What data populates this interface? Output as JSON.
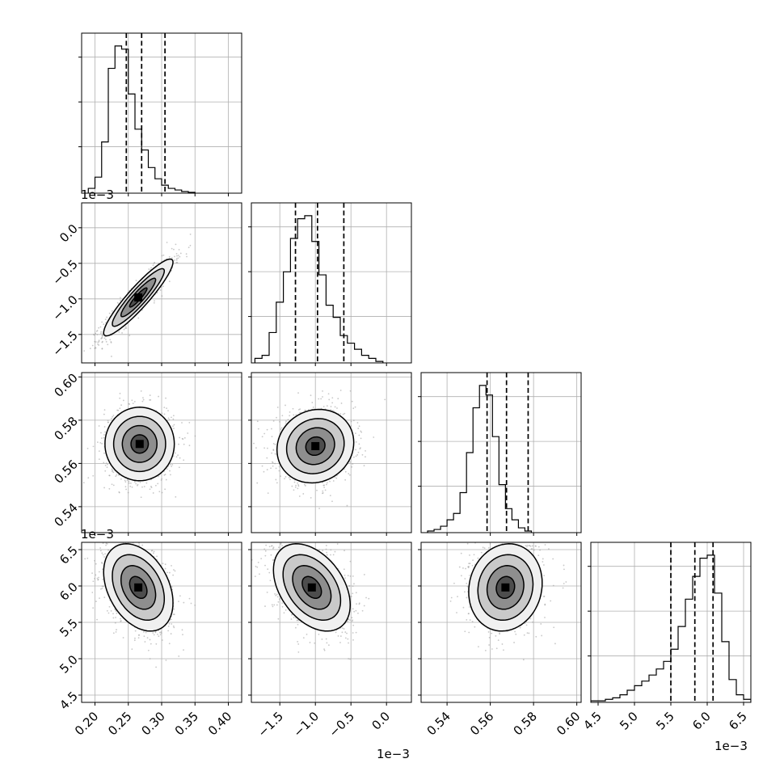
{
  "chart_data": {
    "type": "corner",
    "grid": true,
    "offset_labels": {
      "row2_y": "1e−3",
      "row4_y": "1e−3",
      "col2_x": "1e−3",
      "col4_x": "1e−3"
    },
    "parameters": [
      {
        "id": "p1",
        "range": [
          0.18,
          0.42
        ],
        "ticks": [
          0.2,
          0.25,
          0.3,
          0.35,
          0.4
        ],
        "tick_labels": [
          "0.20",
          "0.25",
          "0.30",
          "0.35",
          "0.40"
        ],
        "quantiles": [
          0.247,
          0.27,
          0.305
        ],
        "hist": {
          "edges_start": 0.19,
          "bin_width": 0.01,
          "counts": [
            0.03,
            0.1,
            0.32,
            0.78,
            0.92,
            0.9,
            0.62,
            0.4,
            0.27,
            0.16,
            0.09,
            0.05,
            0.03,
            0.02,
            0.01,
            0.005
          ]
        },
        "mean": 0.27,
        "sd": 0.026
      },
      {
        "id": "p2",
        "range": [
          -1.9,
          0.35
        ],
        "ticks": [
          -1.5,
          -1.0,
          -0.5,
          0.0
        ],
        "tick_labels": [
          "−1.5",
          "−1.0",
          "−0.5",
          "0.0"
        ],
        "quantiles": [
          -1.28,
          -0.97,
          -0.6
        ],
        "hist": {
          "edges_start": -1.85,
          "bin_width": 0.1,
          "counts": [
            0.03,
            0.05,
            0.2,
            0.4,
            0.6,
            0.82,
            0.95,
            0.97,
            0.8,
            0.58,
            0.38,
            0.3,
            0.18,
            0.13,
            0.09,
            0.05,
            0.03,
            0.01
          ]
        },
        "mean": -0.97,
        "sd": 0.27
      },
      {
        "id": "p3",
        "range": [
          0.528,
          0.602
        ],
        "ticks": [
          0.54,
          0.56,
          0.58,
          0.6
        ],
        "tick_labels": [
          "0.54",
          "0.56",
          "0.58",
          "0.60"
        ],
        "quantiles": [
          0.5585,
          0.5675,
          0.5775
        ],
        "hist": {
          "edges_start": 0.531,
          "bin_width": 0.003,
          "counts": [
            0.01,
            0.02,
            0.04,
            0.08,
            0.12,
            0.25,
            0.5,
            0.78,
            0.92,
            0.86,
            0.6,
            0.3,
            0.15,
            0.08,
            0.03,
            0.01
          ]
        },
        "mean": 0.5675,
        "sd": 0.0085
      },
      {
        "id": "p4",
        "range": [
          4.4,
          6.6
        ],
        "ticks": [
          4.5,
          5.0,
          5.5,
          6.0,
          6.5
        ],
        "tick_labels": [
          "4.5",
          "5.0",
          "5.5",
          "6.0",
          "6.5"
        ],
        "quantiles": [
          5.5,
          5.83,
          6.08
        ],
        "hist": {
          "edges_start": 4.4,
          "bin_width": 0.1,
          "counts": [
            0.01,
            0.01,
            0.02,
            0.03,
            0.05,
            0.08,
            0.11,
            0.14,
            0.18,
            0.22,
            0.27,
            0.35,
            0.5,
            0.68,
            0.83,
            0.95,
            0.97,
            0.72,
            0.4,
            0.15,
            0.05,
            0.02
          ]
        },
        "mean": 5.8,
        "sd": 0.3
      }
    ],
    "pairs": [
      {
        "x": "p1",
        "y": "p2",
        "correlation": 0.92,
        "peak": [
          0.265,
          -0.98
        ]
      },
      {
        "x": "p1",
        "y": "p3",
        "correlation": 0.0,
        "peak": [
          0.267,
          0.569
        ]
      },
      {
        "x": "p2",
        "y": "p3",
        "correlation": 0.1,
        "peak": [
          -1.0,
          0.568
        ]
      },
      {
        "x": "p1",
        "y": "p4",
        "correlation": -0.35,
        "peak": [
          0.265,
          5.98
        ]
      },
      {
        "x": "p2",
        "y": "p4",
        "correlation": -0.4,
        "peak": [
          -1.05,
          5.98
        ]
      },
      {
        "x": "p3",
        "y": "p4",
        "correlation": 0.1,
        "peak": [
          0.567,
          5.98
        ]
      }
    ]
  }
}
